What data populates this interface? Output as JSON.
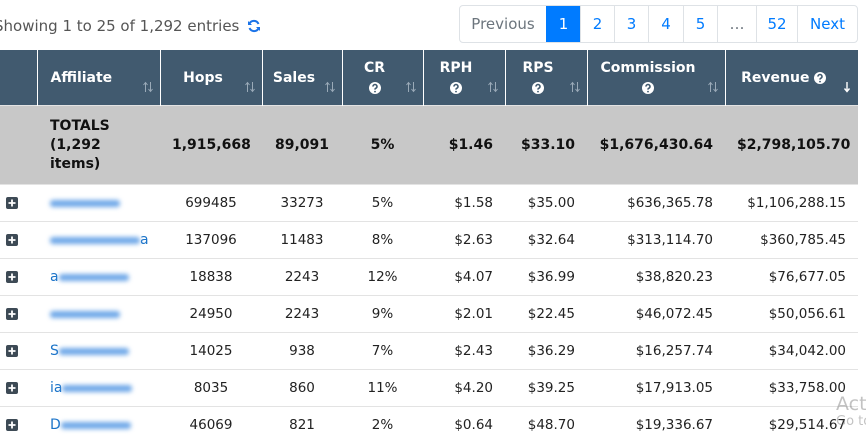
{
  "info": "Showing 1 to 25 of 1,292 entries",
  "pagination": {
    "previous": "Previous",
    "pages": [
      "1",
      "2",
      "3",
      "4",
      "5",
      "…",
      "52"
    ],
    "active": "1",
    "next": "Next"
  },
  "table": {
    "columns": [
      {
        "label": "Affiliate"
      },
      {
        "label": "Hops"
      },
      {
        "label": "Sales"
      },
      {
        "label": "CR",
        "help": true
      },
      {
        "label": "RPH",
        "help": true
      },
      {
        "label": "RPS",
        "help": true
      },
      {
        "label": "Commission",
        "help": true
      },
      {
        "label": "Revenue",
        "help": true,
        "sorted": "desc"
      }
    ],
    "totals": [
      "TOTALS (1,292 items)",
      "1,915,668",
      "89,091",
      "5%",
      "$1.46",
      "$33.10",
      "$1,676,430.64",
      "$2,798,105.70"
    ],
    "rows": [
      {
        "cells": [
          "699485",
          "33273",
          "5%",
          "$1.58",
          "$35.00",
          "$636,365.78",
          "$1,106,288.15"
        ]
      },
      {
        "affiliate": "a",
        "cells": [
          "137096",
          "11483",
          "8%",
          "$2.63",
          "$32.64",
          "$313,114.70",
          "$360,785.45"
        ]
      },
      {
        "affiliate": "a",
        "cells": [
          "18838",
          "2243",
          "12%",
          "$4.07",
          "$36.99",
          "$38,820.23",
          "$76,677.05"
        ]
      },
      {
        "cells": [
          "24950",
          "2243",
          "9%",
          "$2.01",
          "$22.45",
          "$46,072.45",
          "$50,056.61"
        ]
      },
      {
        "affiliate": "S",
        "cells": [
          "14025",
          "938",
          "7%",
          "$2.43",
          "$36.29",
          "$16,257.74",
          "$34,042.00"
        ]
      },
      {
        "affiliate": "ia",
        "cells": [
          "8035",
          "860",
          "11%",
          "$4.20",
          "$39.25",
          "$17,913.05",
          "$33,758.00"
        ]
      },
      {
        "affiliate": "D",
        "cells": [
          "46069",
          "821",
          "2%",
          "$0.64",
          "$48.70",
          "$19,336.67",
          "$29,514.67"
        ]
      }
    ]
  },
  "watermark": [
    "Act",
    "Go to"
  ]
}
